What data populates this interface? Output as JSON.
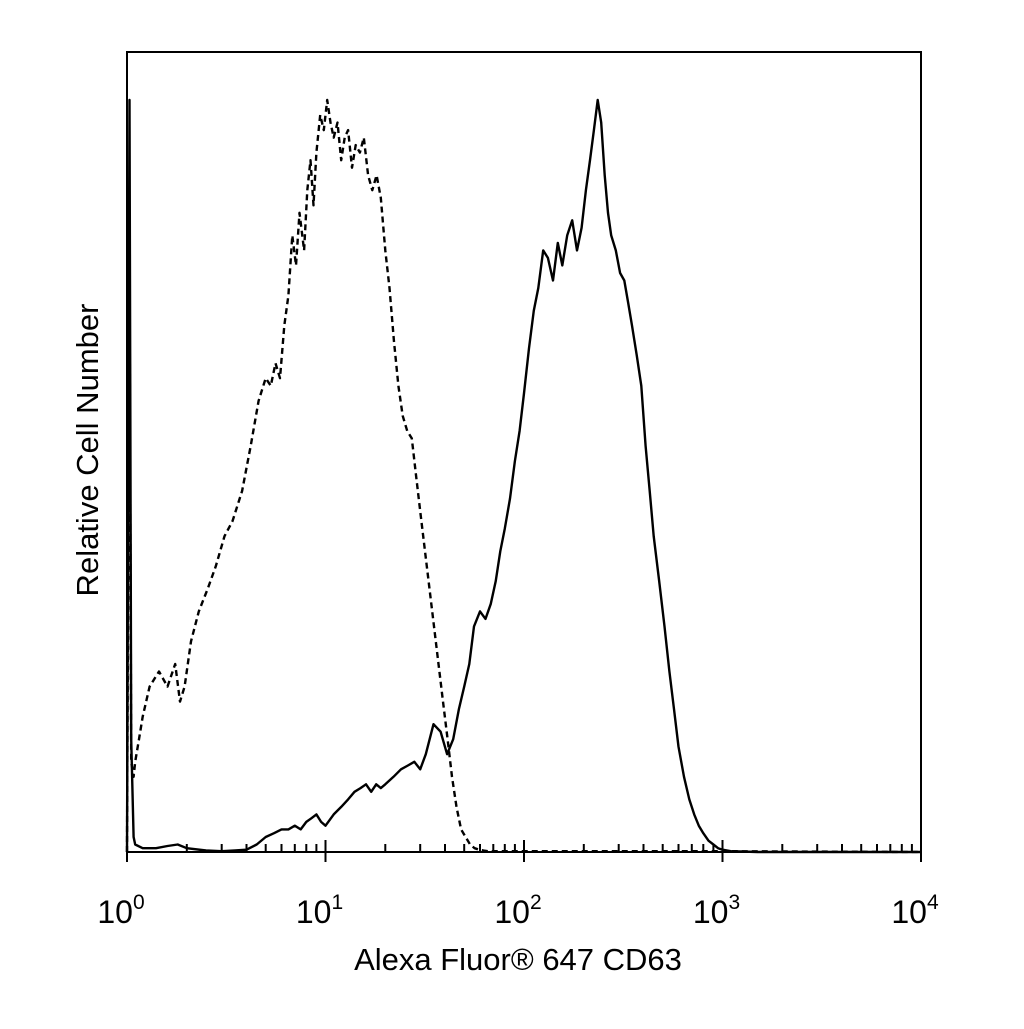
{
  "chart_data": {
    "type": "line",
    "title": "",
    "xlabel": "Alexa Fluor® 647 CD63",
    "ylabel": "Relative Cell Number",
    "x_scale": "log",
    "xlim": [
      1,
      10000
    ],
    "ylim": [
      0,
      1
    ],
    "grid": false,
    "legend": "none",
    "x_ticks": [
      {
        "value": 1,
        "base": "10",
        "exp": "0"
      },
      {
        "value": 10,
        "base": "10",
        "exp": "1"
      },
      {
        "value": 100,
        "base": "10",
        "exp": "2"
      },
      {
        "value": 1000,
        "base": "10",
        "exp": "3"
      },
      {
        "value": 10000,
        "base": "10",
        "exp": "4"
      }
    ],
    "series": [
      {
        "style": "dashed",
        "color": "#000000",
        "x": [
          1.0,
          1.03,
          1.05,
          1.08,
          1.1,
          1.15,
          1.2,
          1.3,
          1.45,
          1.6,
          1.75,
          1.85,
          1.95,
          2.1,
          2.3,
          2.55,
          2.8,
          3.1,
          3.4,
          3.8,
          4.2,
          4.6,
          5.0,
          5.3,
          5.6,
          5.9,
          6.2,
          6.5,
          6.8,
          7.1,
          7.4,
          7.8,
          8.1,
          8.4,
          8.7,
          9.0,
          9.4,
          9.8,
          10.2,
          10.6,
          11.0,
          11.5,
          12.0,
          12.5,
          13.0,
          13.6,
          14.2,
          14.9,
          15.6,
          16.4,
          17.2,
          18.1,
          19.0,
          20.0,
          21.0,
          22.1,
          23.3,
          24.5,
          25.8,
          27.2,
          28.6,
          30.1,
          31.7,
          33.4,
          35.2,
          37.1,
          39.1,
          41.2,
          43.4,
          45.7,
          48.2,
          50.8,
          53.5,
          56.4,
          59.4,
          62.6,
          66.0,
          70.0,
          80.0,
          100.0,
          150.0,
          300.0,
          1000.0,
          10000.0
        ],
        "y": [
          0.0,
          0.79,
          0.12,
          0.1,
          0.12,
          0.15,
          0.18,
          0.22,
          0.24,
          0.22,
          0.25,
          0.2,
          0.22,
          0.28,
          0.32,
          0.35,
          0.38,
          0.42,
          0.44,
          0.48,
          0.54,
          0.6,
          0.63,
          0.62,
          0.65,
          0.63,
          0.7,
          0.74,
          0.82,
          0.78,
          0.85,
          0.8,
          0.88,
          0.92,
          0.86,
          0.93,
          0.98,
          0.96,
          1.0,
          0.97,
          0.95,
          0.97,
          0.92,
          0.95,
          0.96,
          0.91,
          0.94,
          0.93,
          0.95,
          0.9,
          0.88,
          0.9,
          0.87,
          0.8,
          0.75,
          0.68,
          0.62,
          0.58,
          0.56,
          0.55,
          0.5,
          0.45,
          0.4,
          0.35,
          0.3,
          0.25,
          0.2,
          0.15,
          0.1,
          0.06,
          0.03,
          0.02,
          0.01,
          0.005,
          0.003,
          0.002,
          0.001,
          0.001,
          0.001,
          0.001,
          0.001,
          0.001,
          0.001,
          0.0
        ]
      },
      {
        "style": "solid",
        "color": "#000000",
        "x": [
          1.0,
          1.03,
          1.05,
          1.08,
          1.1,
          1.2,
          1.4,
          1.6,
          1.8,
          2.0,
          2.5,
          3.0,
          3.5,
          4.0,
          4.5,
          5.0,
          5.5,
          6.0,
          6.5,
          7.0,
          7.5,
          8.0,
          8.5,
          9.0,
          9.5,
          10.0,
          11.0,
          12.0,
          13.0,
          14.0,
          15.0,
          16.0,
          17.0,
          18.0,
          19.0,
          20.0,
          22.0,
          24.0,
          26.0,
          28.0,
          30.0,
          32.0,
          35.0,
          38.0,
          41.0,
          44.0,
          47.0,
          50.0,
          53.0,
          56.0,
          60.0,
          64.0,
          68.0,
          72.0,
          76.0,
          80.0,
          85.0,
          90.0,
          95.0,
          100.0,
          106.0,
          112.0,
          118.0,
          125.0,
          132.0,
          140.0,
          148.0,
          156.0,
          165.0,
          175.0,
          185.0,
          195.0,
          205.0,
          215.0,
          225.0,
          235.0,
          245.0,
          255.0,
          265.0,
          275.0,
          290.0,
          305.0,
          320.0,
          335.0,
          350.0,
          370.0,
          390.0,
          410.0,
          430.0,
          450.0,
          480.0,
          510.0,
          540.0,
          570.0,
          600.0,
          640.0,
          680.0,
          720.0,
          760.0,
          800.0,
          850.0,
          900.0,
          950.0,
          1000.0,
          1100.0,
          1500.0,
          3000.0,
          10000.0
        ],
        "y": [
          0.0,
          1.0,
          0.15,
          0.02,
          0.01,
          0.005,
          0.005,
          0.008,
          0.01,
          0.005,
          0.002,
          0.001,
          0.002,
          0.003,
          0.01,
          0.02,
          0.025,
          0.03,
          0.03,
          0.035,
          0.03,
          0.04,
          0.045,
          0.05,
          0.04,
          0.035,
          0.05,
          0.06,
          0.07,
          0.08,
          0.085,
          0.09,
          0.08,
          0.09,
          0.085,
          0.09,
          0.1,
          0.11,
          0.115,
          0.12,
          0.11,
          0.13,
          0.17,
          0.16,
          0.13,
          0.15,
          0.19,
          0.22,
          0.25,
          0.3,
          0.32,
          0.31,
          0.33,
          0.36,
          0.4,
          0.43,
          0.47,
          0.52,
          0.56,
          0.61,
          0.67,
          0.72,
          0.75,
          0.8,
          0.79,
          0.76,
          0.81,
          0.78,
          0.82,
          0.84,
          0.8,
          0.83,
          0.88,
          0.92,
          0.96,
          1.0,
          0.97,
          0.9,
          0.85,
          0.82,
          0.8,
          0.77,
          0.76,
          0.73,
          0.7,
          0.66,
          0.62,
          0.54,
          0.48,
          0.42,
          0.36,
          0.3,
          0.24,
          0.19,
          0.14,
          0.1,
          0.07,
          0.05,
          0.035,
          0.025,
          0.015,
          0.01,
          0.005,
          0.003,
          0.001,
          0.0,
          0.0,
          0.0
        ]
      }
    ]
  }
}
